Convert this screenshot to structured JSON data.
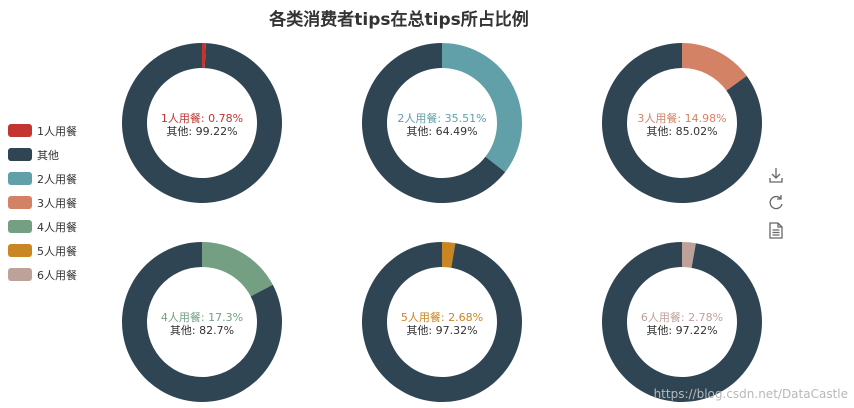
{
  "chart_data": {
    "type": "pie",
    "title": "各类消费者tips在总tips所占比例",
    "legend": {
      "position": "left",
      "items": [
        {
          "name": "1人用餐",
          "color": "#c23531"
        },
        {
          "name": "其他",
          "color": "#2f4554"
        },
        {
          "name": "2人用餐",
          "color": "#61a0a8"
        },
        {
          "name": "3人用餐",
          "color": "#d48265"
        },
        {
          "name": "4人用餐",
          "color": "#749f83"
        },
        {
          "name": "5人用餐",
          "color": "#ca8622"
        },
        {
          "name": "6人用餐",
          "color": "#bda29a"
        }
      ]
    },
    "series": [
      {
        "name": "1人用餐",
        "value": 0.78,
        "other_name": "其他",
        "other_value": 99.22,
        "color": "#c23531",
        "label": "1人用餐: 0.78%",
        "other_label": "其他: 99.22%"
      },
      {
        "name": "2人用餐",
        "value": 35.51,
        "other_name": "其他",
        "other_value": 64.49,
        "color": "#61a0a8",
        "label": "2人用餐: 35.51%",
        "other_label": "其他: 64.49%"
      },
      {
        "name": "3人用餐",
        "value": 14.98,
        "other_name": "其他",
        "other_value": 85.02,
        "color": "#d48265",
        "label": "3人用餐: 14.98%",
        "other_label": "其他: 85.02%"
      },
      {
        "name": "4人用餐",
        "value": 17.3,
        "other_name": "其他",
        "other_value": 82.7,
        "color": "#749f83",
        "label": "4人用餐: 17.3%",
        "other_label": "其他: 82.7%"
      },
      {
        "name": "5人用餐",
        "value": 2.68,
        "other_name": "其他",
        "other_value": 97.32,
        "color": "#ca8622",
        "label": "5人用餐: 2.68%",
        "other_label": "其他: 97.32%"
      },
      {
        "name": "6人用餐",
        "value": 2.78,
        "other_name": "其他",
        "other_value": 97.22,
        "color": "#bda29a",
        "label": "6人用餐: 2.78%",
        "other_label": "其他: 97.22%"
      }
    ],
    "other_color": "#2f4554"
  },
  "toolbox": {
    "items": [
      "download-icon",
      "refresh-icon",
      "data-view-icon"
    ]
  },
  "watermark": "https://blog.csdn.net/DataCastle"
}
